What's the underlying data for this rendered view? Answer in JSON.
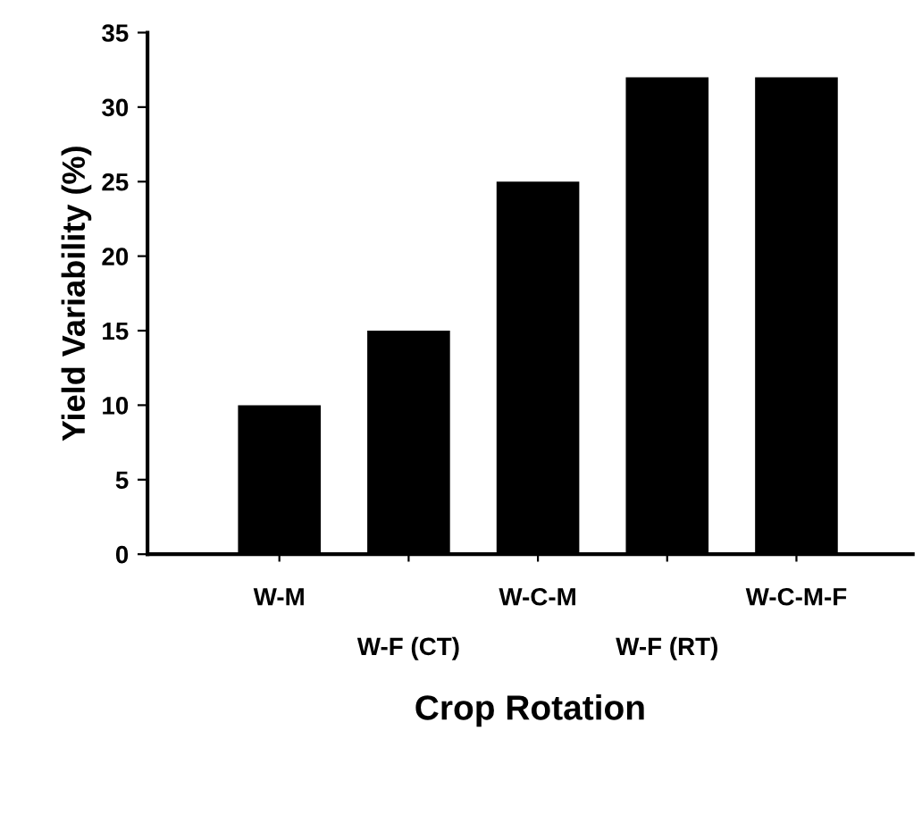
{
  "chart_data": {
    "type": "bar",
    "xlabel": "Crop Rotation",
    "ylabel": "Yield Variability (%)",
    "categories": [
      "W-M",
      "W-F (CT)",
      "W-C-M",
      "W-F (RT)",
      "W-C-M-F"
    ],
    "values": [
      10,
      15,
      25,
      32,
      32
    ],
    "color": "#000000",
    "ylim": [
      0,
      35
    ],
    "yticks": [
      0,
      5,
      10,
      15,
      20,
      25,
      30,
      35
    ],
    "grid": false
  }
}
